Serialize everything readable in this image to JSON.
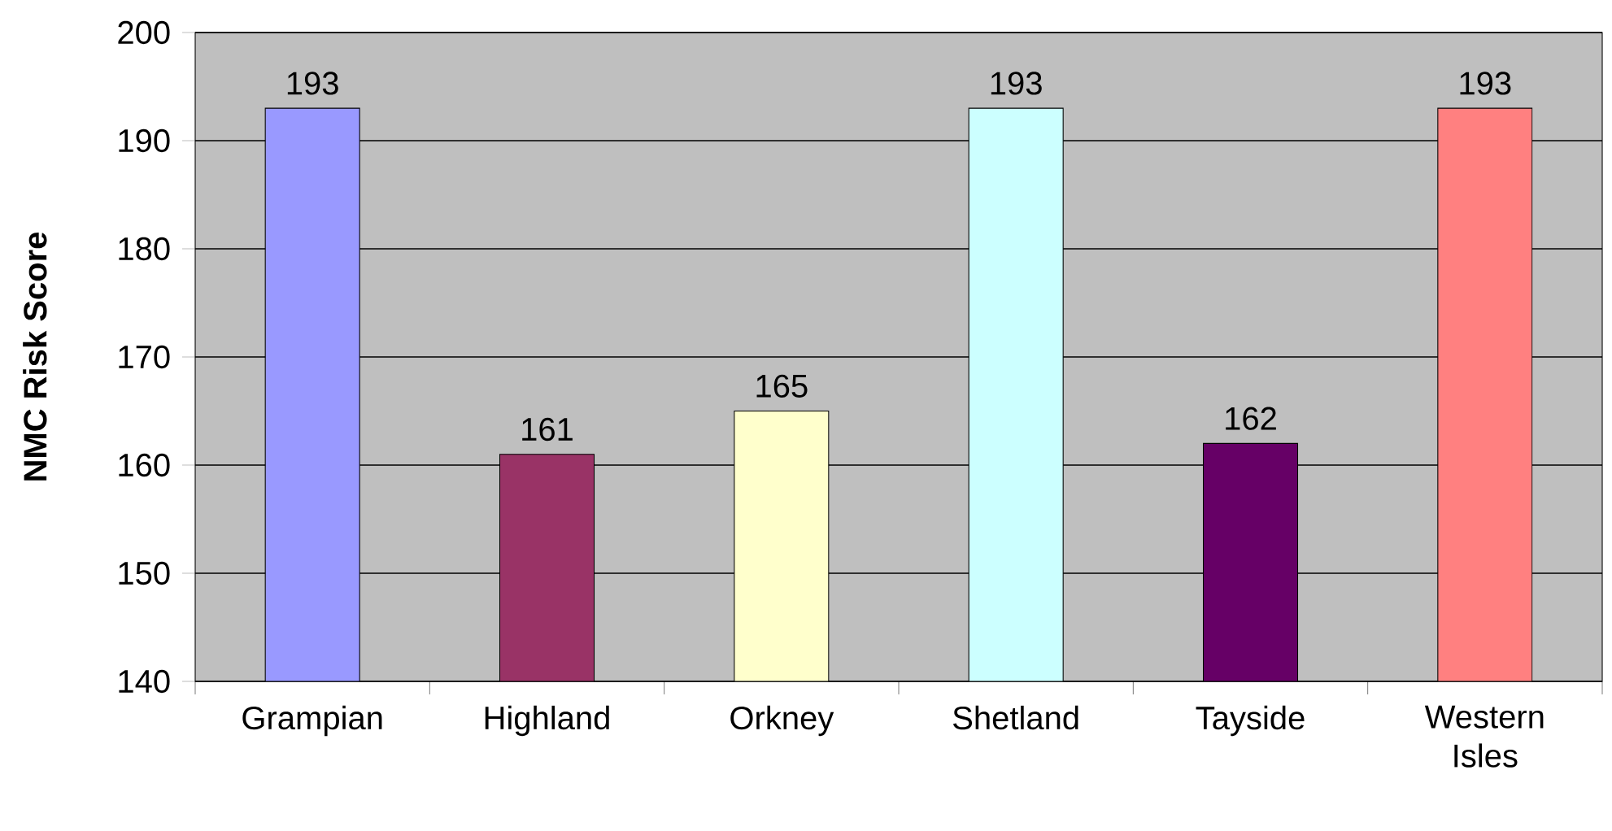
{
  "chart_data": {
    "type": "bar",
    "ylabel": "NMC Risk Score",
    "categories": [
      "Grampian",
      "Highland",
      "Orkney",
      "Shetland",
      "Tayside",
      "Western Isles"
    ],
    "values": [
      193,
      161,
      165,
      193,
      162,
      193
    ],
    "colors": [
      "#9999ff",
      "#993366",
      "#ffffcc",
      "#ccffff",
      "#660066",
      "#ff8080"
    ],
    "ylim": [
      140,
      200
    ],
    "yticks": [
      140,
      150,
      160,
      170,
      180,
      190,
      200
    ],
    "grid": "y",
    "data_labels": true
  }
}
